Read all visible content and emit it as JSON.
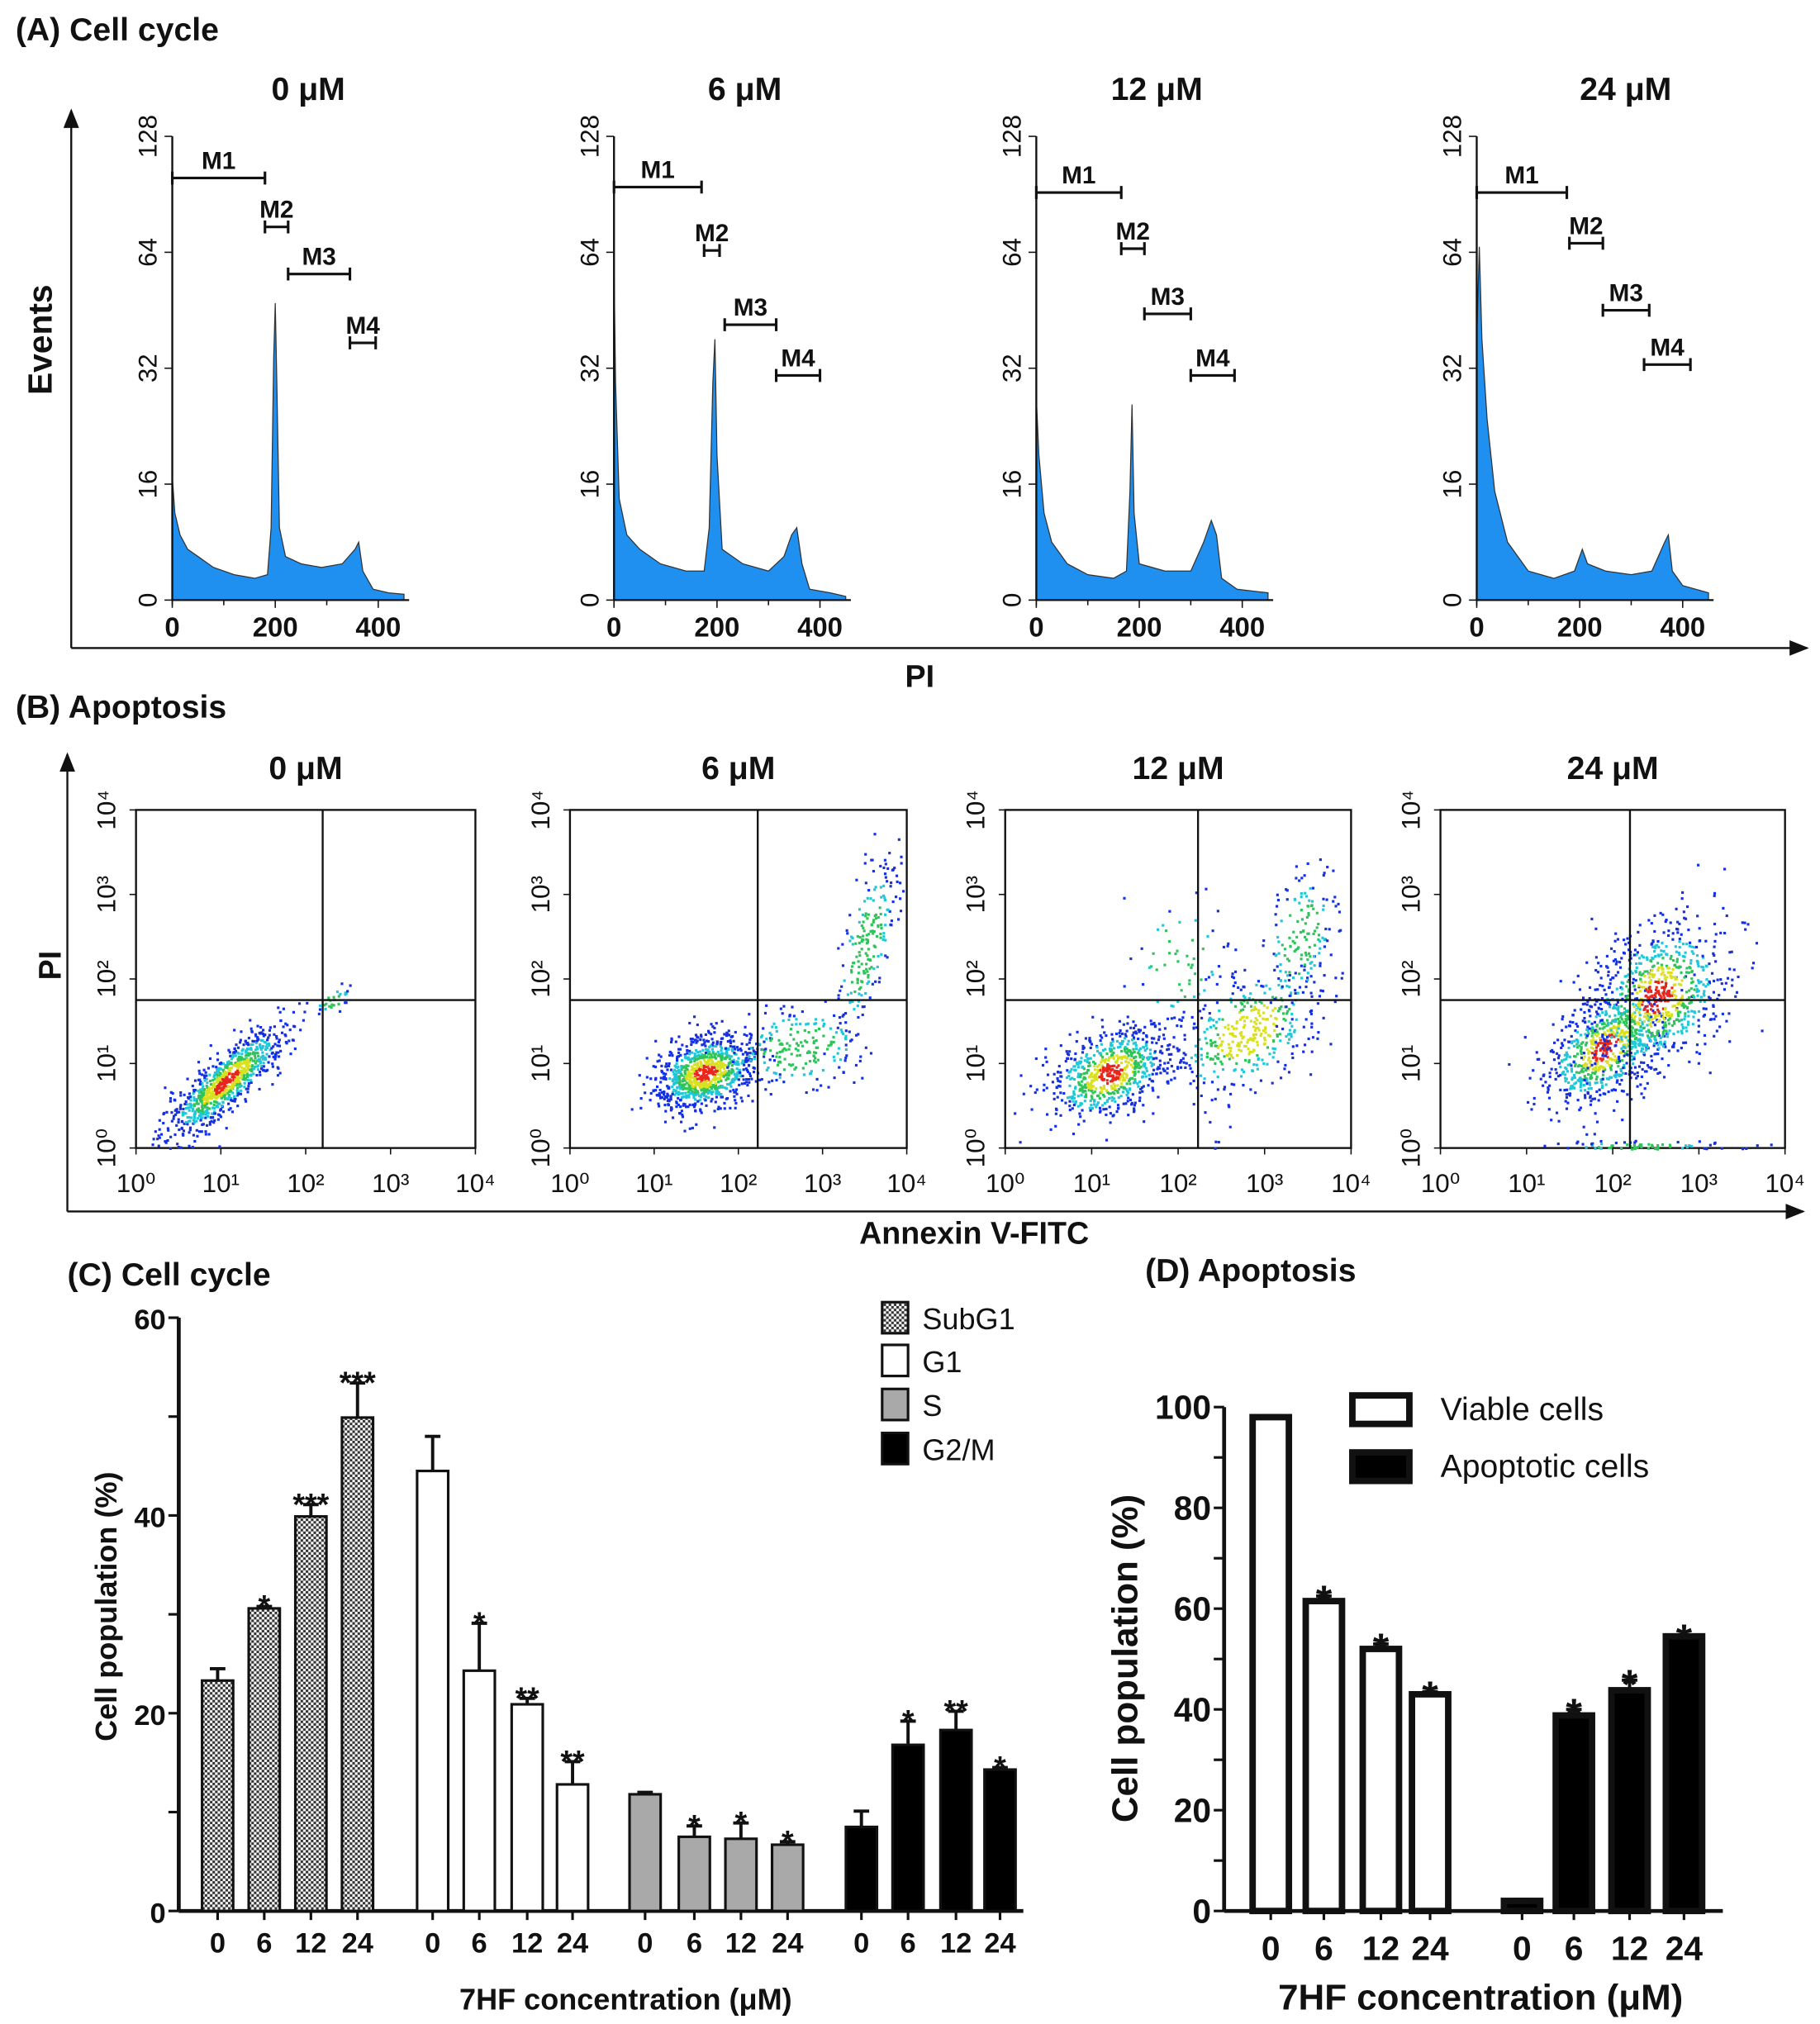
{
  "panel_a": {
    "label": "(A) Cell cycle",
    "x_label": "PI",
    "y_label": "Events"
  },
  "panel_b": {
    "label": "(B) Apoptosis",
    "x_label": "Annexin V-FITC",
    "y_label": "PI"
  },
  "panel_c": {
    "label": "(C) Cell cycle"
  },
  "panel_d": {
    "label": "(D) Apoptosis"
  },
  "chart_data": [
    {
      "type": "area",
      "title": "0 μM",
      "x_ticks": [
        "0",
        "200",
        "400"
      ],
      "y_ticks": [
        "0",
        "16",
        "32",
        "64",
        "128"
      ],
      "points": [
        [
          0,
          17
        ],
        [
          5,
          12
        ],
        [
          15,
          9
        ],
        [
          30,
          7
        ],
        [
          50,
          6
        ],
        [
          80,
          4.5
        ],
        [
          120,
          3.5
        ],
        [
          160,
          3
        ],
        [
          185,
          3.5
        ],
        [
          192,
          10
        ],
        [
          197,
          35
        ],
        [
          200,
          50
        ],
        [
          203,
          30
        ],
        [
          208,
          10
        ],
        [
          220,
          6
        ],
        [
          250,
          5
        ],
        [
          290,
          4.5
        ],
        [
          330,
          5
        ],
        [
          355,
          7
        ],
        [
          362,
          8
        ],
        [
          370,
          4
        ],
        [
          390,
          1.5
        ],
        [
          420,
          1
        ],
        [
          450,
          0.8
        ]
      ],
      "gates": [
        {
          "label": "M1",
          "range": [
            0,
            180
          ],
          "level": 105
        },
        {
          "label": "M2",
          "range": [
            180,
            225
          ],
          "level": 78
        },
        {
          "label": "M3",
          "range": [
            225,
            345
          ],
          "level": 58
        },
        {
          "label": "M4",
          "range": [
            345,
            395
          ],
          "level": 39
        }
      ]
    },
    {
      "type": "area",
      "title": "6 μM",
      "x_ticks": [
        "0",
        "200",
        "400"
      ],
      "y_ticks": [
        "0",
        "16",
        "32",
        "64",
        "128"
      ],
      "points": [
        [
          0,
          60
        ],
        [
          3,
          30
        ],
        [
          10,
          14
        ],
        [
          25,
          9
        ],
        [
          50,
          7
        ],
        [
          90,
          5
        ],
        [
          140,
          4
        ],
        [
          175,
          4
        ],
        [
          185,
          10
        ],
        [
          192,
          30
        ],
        [
          196,
          40
        ],
        [
          200,
          20
        ],
        [
          210,
          7
        ],
        [
          250,
          5
        ],
        [
          300,
          4
        ],
        [
          330,
          6
        ],
        [
          345,
          9
        ],
        [
          355,
          10
        ],
        [
          365,
          5
        ],
        [
          380,
          1.5
        ],
        [
          420,
          1
        ],
        [
          450,
          0.5
        ]
      ],
      "gates": [
        {
          "label": "M1",
          "range": [
            0,
            170
          ],
          "level": 100
        },
        {
          "label": "M2",
          "range": [
            175,
            205
          ],
          "level": 65
        },
        {
          "label": "M3",
          "range": [
            215,
            315
          ],
          "level": 44
        },
        {
          "label": "M4",
          "range": [
            315,
            400
          ],
          "level": 31
        }
      ]
    },
    {
      "type": "area",
      "title": "12 μM",
      "x_ticks": [
        "0",
        "200",
        "400"
      ],
      "y_ticks": [
        "0",
        "16",
        "32",
        "64",
        "128"
      ],
      "points": [
        [
          0,
          28
        ],
        [
          5,
          20
        ],
        [
          15,
          12
        ],
        [
          30,
          8
        ],
        [
          60,
          5
        ],
        [
          100,
          3.5
        ],
        [
          150,
          3
        ],
        [
          175,
          4
        ],
        [
          182,
          15
        ],
        [
          186,
          27
        ],
        [
          190,
          12
        ],
        [
          200,
          5
        ],
        [
          250,
          4
        ],
        [
          300,
          4
        ],
        [
          325,
          8
        ],
        [
          340,
          11
        ],
        [
          350,
          9
        ],
        [
          360,
          3
        ],
        [
          390,
          1.5
        ],
        [
          450,
          1
        ]
      ],
      "gates": [
        {
          "label": "M1",
          "range": [
            0,
            165
          ],
          "level": 97
        },
        {
          "label": "M2",
          "range": [
            165,
            210
          ],
          "level": 66
        },
        {
          "label": "M3",
          "range": [
            210,
            300
          ],
          "level": 47
        },
        {
          "label": "M4",
          "range": [
            300,
            385
          ],
          "level": 31
        }
      ]
    },
    {
      "type": "area",
      "title": "24 μM",
      "x_ticks": [
        "0",
        "200",
        "400"
      ],
      "y_ticks": [
        "0",
        "16",
        "32",
        "64",
        "128"
      ],
      "points": [
        [
          0,
          40
        ],
        [
          5,
          67
        ],
        [
          10,
          40
        ],
        [
          20,
          25
        ],
        [
          35,
          15
        ],
        [
          60,
          8
        ],
        [
          100,
          4
        ],
        [
          150,
          3
        ],
        [
          190,
          4
        ],
        [
          205,
          7
        ],
        [
          215,
          5
        ],
        [
          250,
          4
        ],
        [
          300,
          3.5
        ],
        [
          340,
          4
        ],
        [
          365,
          8
        ],
        [
          372,
          9
        ],
        [
          380,
          4
        ],
        [
          400,
          2
        ],
        [
          450,
          1
        ]
      ],
      "gates": [
        {
          "label": "M1",
          "range": [
            0,
            175
          ],
          "level": 97
        },
        {
          "label": "M2",
          "range": [
            180,
            245
          ],
          "level": 69
        },
        {
          "label": "M3",
          "range": [
            245,
            335
          ],
          "level": 48
        },
        {
          "label": "M4",
          "range": [
            325,
            415
          ],
          "level": 33
        }
      ]
    },
    {
      "type": "scatter",
      "title": "0 μM",
      "x_ticks": [
        "10⁰",
        "10¹",
        "10²",
        "10³",
        "10⁴"
      ],
      "y_ticks": [
        "10⁰",
        "10¹",
        "10²",
        "10³",
        "10⁴"
      ],
      "quadrant": [
        2.2,
        1.75
      ],
      "clusters": [
        [
          1.05,
          0.8,
          0.35,
          0.33,
          0.85,
          900
        ],
        [
          2.3,
          1.75,
          0.12,
          0.08,
          0.5,
          25
        ]
      ]
    },
    {
      "type": "scatter",
      "title": "6 μM",
      "x_ticks": [
        "10⁰",
        "10¹",
        "10²",
        "10³",
        "10⁴"
      ],
      "y_ticks": [
        "10⁰",
        "10¹",
        "10²",
        "10³",
        "10⁴"
      ],
      "quadrant": [
        2.23,
        1.75
      ],
      "clusters": [
        [
          1.6,
          0.9,
          0.3,
          0.22,
          0.3,
          900
        ],
        [
          2.7,
          1.2,
          0.4,
          0.25,
          0.2,
          200
        ],
        [
          3.5,
          2.4,
          0.18,
          0.5,
          0.6,
          200
        ]
      ]
    },
    {
      "type": "scatter",
      "title": "12 μM",
      "x_ticks": [
        "10⁰",
        "10¹",
        "10²",
        "10³",
        "10⁴"
      ],
      "y_ticks": [
        "10⁰",
        "10¹",
        "10²",
        "10³",
        "10⁴"
      ],
      "quadrant": [
        2.23,
        1.75
      ],
      "clusters": [
        [
          1.2,
          0.9,
          0.35,
          0.28,
          0.4,
          700
        ],
        [
          2.8,
          1.4,
          0.45,
          0.4,
          0.5,
          400
        ],
        [
          3.4,
          2.5,
          0.2,
          0.4,
          0.3,
          150
        ],
        [
          2.0,
          2.2,
          0.3,
          0.4,
          0,
          60
        ]
      ]
    },
    {
      "type": "scatter",
      "title": "24 μM",
      "x_ticks": [
        "10⁰",
        "10¹",
        "10²",
        "10³",
        "10⁴"
      ],
      "y_ticks": [
        "10⁰",
        "10¹",
        "10²",
        "10³",
        "10⁴"
      ],
      "quadrant": [
        2.2,
        1.75
      ],
      "clusters": [
        [
          1.9,
          1.2,
          0.35,
          0.35,
          0.5,
          700
        ],
        [
          2.5,
          1.8,
          0.4,
          0.45,
          0.3,
          800
        ],
        [
          2.3,
          0.03,
          0.5,
          0.03,
          0,
          80
        ]
      ]
    },
    {
      "type": "bar",
      "title": "(C) Cell cycle",
      "ylabel": "Cell population (%)",
      "xlabel": "7HF concentration (μM)",
      "ylim": [
        0,
        60
      ],
      "y_ticks": [
        "0",
        "20",
        "40",
        "60"
      ],
      "categories": [
        "0",
        "6",
        "12",
        "24"
      ],
      "series": [
        {
          "name": "SubG1",
          "values": [
            23.3,
            30.6,
            39.9,
            49.9
          ],
          "errors": [
            1.2,
            0.2,
            1.2,
            3.5
          ],
          "sig": [
            "",
            "*",
            "***",
            "***"
          ]
        },
        {
          "name": "G1",
          "values": [
            44.5,
            24.3,
            20.9,
            12.8
          ],
          "errors": [
            3.5,
            4.8,
            0.6,
            2.3
          ],
          "sig": [
            "",
            "*",
            "**",
            "**"
          ]
        },
        {
          "name": "S",
          "values": [
            11.8,
            7.5,
            7.3,
            6.7
          ],
          "errors": [
            0.2,
            1.1,
            1.6,
            0.3
          ],
          "sig": [
            "",
            "*",
            "*",
            "*"
          ]
        },
        {
          "name": "G2/M",
          "values": [
            8.5,
            16.8,
            18.3,
            14.3
          ],
          "errors": [
            1.6,
            2.4,
            1.9,
            0.2
          ],
          "sig": [
            "",
            "*",
            "**",
            "*"
          ]
        }
      ]
    },
    {
      "type": "bar",
      "title": "(D) Apoptosis",
      "ylabel": "Cell population (%)",
      "xlabel": "7HF concentration (μM)",
      "ylim": [
        0,
        100
      ],
      "y_ticks": [
        "0",
        "20",
        "40",
        "60",
        "80",
        "100"
      ],
      "categories": [
        "0",
        "6",
        "12",
        "24"
      ],
      "series": [
        {
          "name": "Viable cells",
          "values": [
            98,
            61.5,
            52,
            43
          ],
          "errors": [
            0.3,
            1,
            1,
            0.5
          ],
          "sig": [
            "",
            "*",
            "*",
            "*"
          ]
        },
        {
          "name": "Apoptotic cells",
          "values": [
            2,
            38.8,
            43.8,
            54.5
          ],
          "errors": [
            0.3,
            1.2,
            2,
            0.3
          ],
          "sig": [
            "",
            "*",
            "*",
            "*"
          ]
        }
      ]
    }
  ],
  "colors": {
    "histogram": "#1f8ff0",
    "axis": "#111111",
    "s_phase": "#a9a9a9"
  }
}
